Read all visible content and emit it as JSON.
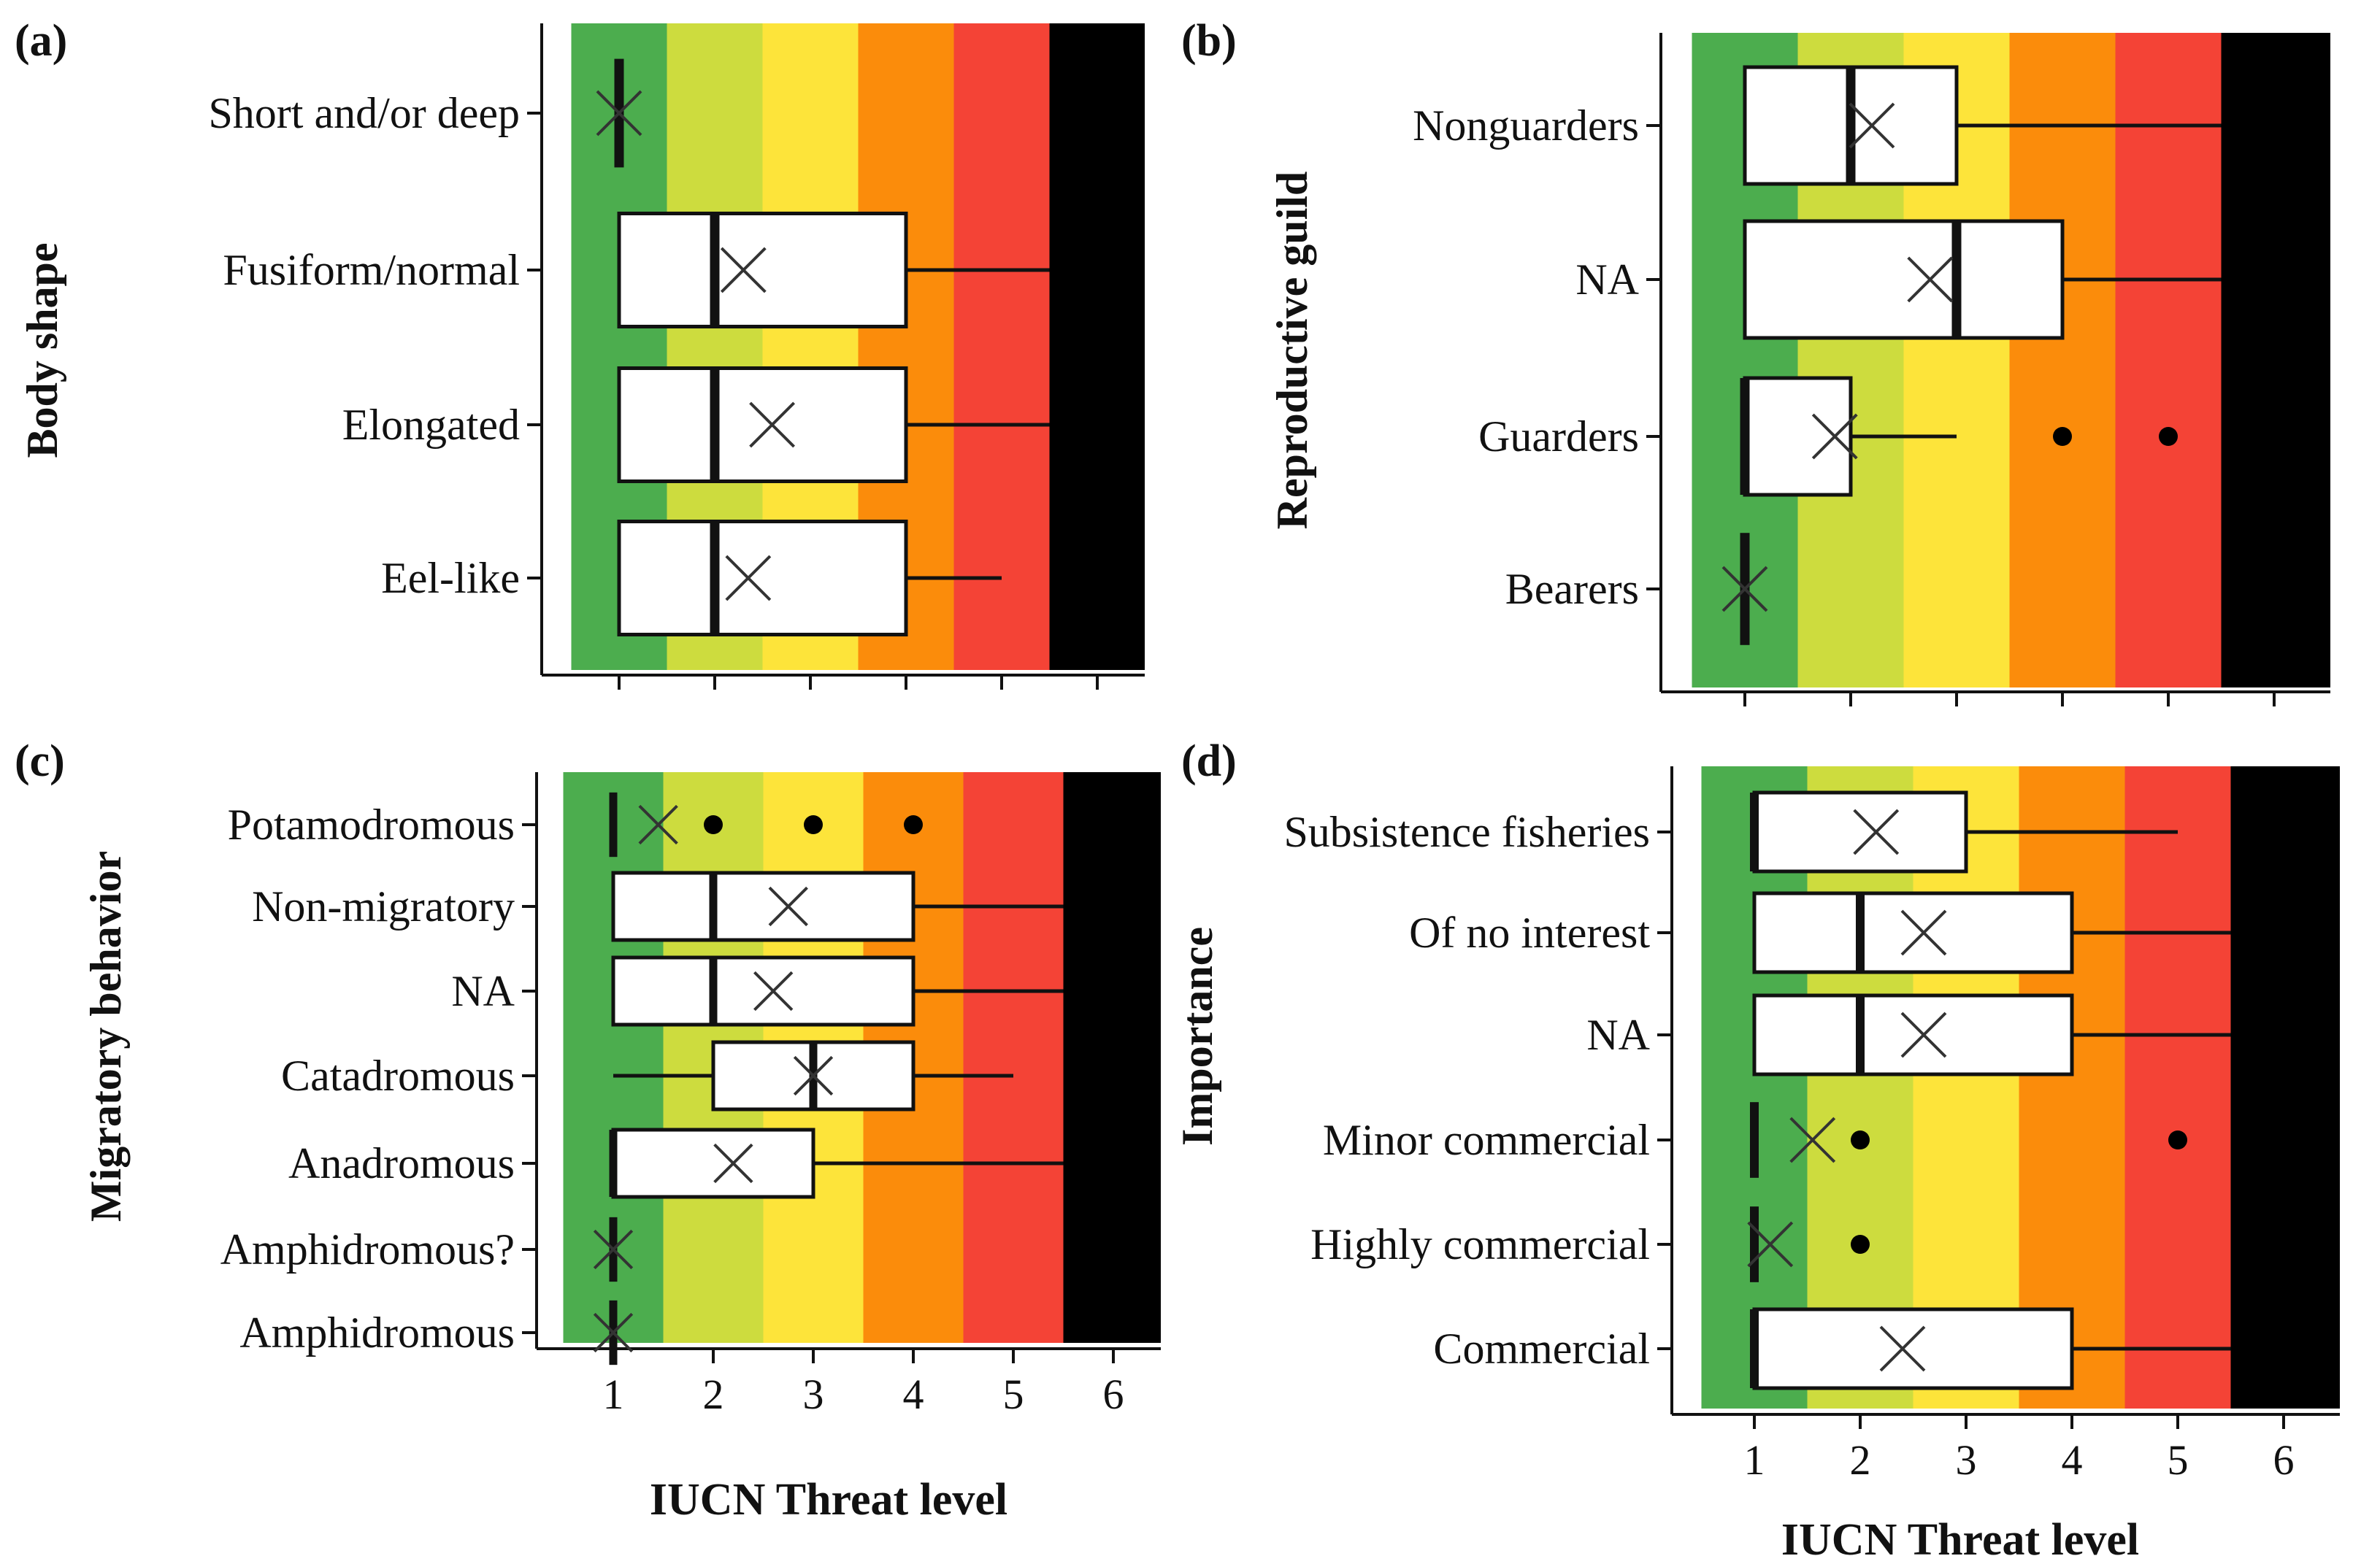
{
  "colors": {
    "bands": [
      "#4cad4e",
      "#cddc3e",
      "#fde43a",
      "#fb8c0b",
      "#f44336",
      "#000000"
    ],
    "box_fill": "#ffffff",
    "stroke": "#111111"
  },
  "chart_data": [
    {
      "type": "box",
      "panel": "(a)",
      "ylabel": "Body shape",
      "xlabel": "",
      "x_ticks": [],
      "xlim": [
        0.5,
        6.5
      ],
      "categories": [
        "Short and/or deep",
        "Fusiform/normal",
        "Elongated",
        "Eel-like"
      ],
      "boxes": [
        {
          "q1": 1,
          "median": 1,
          "q3": 1,
          "whisker_low": 1,
          "whisker_high": 1,
          "mean": 1,
          "outliers": []
        },
        {
          "q1": 1,
          "median": 2,
          "q3": 4,
          "whisker_low": 1,
          "whisker_high": 5.5,
          "mean": 2.3,
          "outliers": []
        },
        {
          "q1": 1,
          "median": 2,
          "q3": 4,
          "whisker_low": 1,
          "whisker_high": 5.5,
          "mean": 2.6,
          "outliers": []
        },
        {
          "q1": 1,
          "median": 2,
          "q3": 4,
          "whisker_low": 1,
          "whisker_high": 5,
          "mean": 2.35,
          "outliers": []
        }
      ]
    },
    {
      "type": "box",
      "panel": "(b)",
      "ylabel": "Reproductive guild",
      "xlabel": "",
      "x_ticks": [],
      "xlim": [
        0.5,
        6.5
      ],
      "categories": [
        "Nonguarders",
        "NA",
        "Guarders",
        "Bearers"
      ],
      "boxes": [
        {
          "q1": 1,
          "median": 2,
          "q3": 3,
          "whisker_low": 1,
          "whisker_high": 5.5,
          "mean": 2.2,
          "outliers": []
        },
        {
          "q1": 1,
          "median": 3,
          "q3": 4,
          "whisker_low": 1,
          "whisker_high": 5.5,
          "mean": 2.75,
          "outliers": []
        },
        {
          "q1": 1,
          "median": 1,
          "q3": 2,
          "whisker_low": 1,
          "whisker_high": 3,
          "mean": 1.85,
          "outliers": [
            4,
            5
          ]
        },
        {
          "q1": 1,
          "median": 1,
          "q3": 1,
          "whisker_low": 1,
          "whisker_high": 1,
          "mean": 1,
          "outliers": []
        }
      ]
    },
    {
      "type": "box",
      "panel": "(c)",
      "ylabel": "Migratory behavior",
      "xlabel": "IUCN Threat level",
      "x_ticks": [
        "1",
        "2",
        "3",
        "4",
        "5",
        "6"
      ],
      "xlim": [
        0.5,
        6.5
      ],
      "categories": [
        "Potamodromous",
        "Non-migratory",
        "NA",
        "Catadromous",
        "Anadromous",
        "Amphidromous?",
        "Amphidromous"
      ],
      "boxes": [
        {
          "q1": 1,
          "median": 1,
          "q3": 1,
          "whisker_low": 1,
          "whisker_high": 1,
          "mean": 1.45,
          "outliers": [
            2,
            3,
            4
          ]
        },
        {
          "q1": 1,
          "median": 2,
          "q3": 4,
          "whisker_low": 1,
          "whisker_high": 5.5,
          "mean": 2.75,
          "outliers": []
        },
        {
          "q1": 1,
          "median": 2,
          "q3": 4,
          "whisker_low": 1,
          "whisker_high": 5.5,
          "mean": 2.6,
          "outliers": []
        },
        {
          "q1": 2,
          "median": 3,
          "q3": 4,
          "whisker_low": 1,
          "whisker_high": 5,
          "mean": 3,
          "outliers": []
        },
        {
          "q1": 1,
          "median": 1,
          "q3": 3,
          "whisker_low": 1,
          "whisker_high": 5.5,
          "mean": 2.2,
          "outliers": []
        },
        {
          "q1": 1,
          "median": 1,
          "q3": 1,
          "whisker_low": 1,
          "whisker_high": 1,
          "mean": 1,
          "outliers": []
        },
        {
          "q1": 1,
          "median": 1,
          "q3": 1,
          "whisker_low": 1,
          "whisker_high": 1,
          "mean": 1,
          "outliers": []
        }
      ]
    },
    {
      "type": "box",
      "panel": "(d)",
      "ylabel": "Importance",
      "xlabel": "IUCN Threat level",
      "x_ticks": [
        "1",
        "2",
        "3",
        "4",
        "5",
        "6"
      ],
      "xlim": [
        0.5,
        6.5
      ],
      "categories": [
        "Subsistence fisheries",
        "Of no interest",
        "NA",
        "Minor commercial",
        "Highly commercial",
        "Commercial"
      ],
      "boxes": [
        {
          "q1": 1,
          "median": 1,
          "q3": 3,
          "whisker_low": 1,
          "whisker_high": 5,
          "mean": 2.15,
          "outliers": []
        },
        {
          "q1": 1,
          "median": 2,
          "q3": 4,
          "whisker_low": 1,
          "whisker_high": 5.5,
          "mean": 2.6,
          "outliers": []
        },
        {
          "q1": 1,
          "median": 2,
          "q3": 4,
          "whisker_low": 1,
          "whisker_high": 5.5,
          "mean": 2.6,
          "outliers": []
        },
        {
          "q1": 1,
          "median": 1,
          "q3": 1,
          "whisker_low": 1,
          "whisker_high": 1,
          "mean": 1.55,
          "outliers": [
            2,
            5
          ]
        },
        {
          "q1": 1,
          "median": 1,
          "q3": 1,
          "whisker_low": 1,
          "whisker_high": 1,
          "mean": 1.15,
          "outliers": [
            2
          ]
        },
        {
          "q1": 1,
          "median": 1,
          "q3": 4,
          "whisker_low": 1,
          "whisker_high": 5.5,
          "mean": 2.4,
          "outliers": []
        }
      ]
    }
  ]
}
